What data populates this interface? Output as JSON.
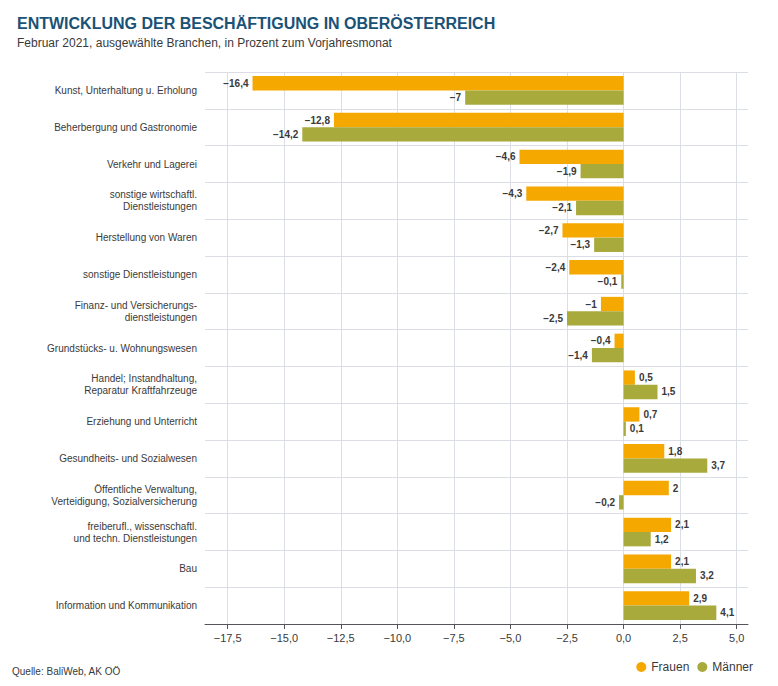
{
  "chart_data": {
    "type": "bar",
    "orientation": "horizontal",
    "title": "ENTWICKLUNG DER BESCHÄFTIGUNG IN OBERÖSTERREICH",
    "subtitle": "Februar 2021, ausgewählte Branchen, in Prozent zum Vorjahresmonat",
    "annotations": [
      "Quelle: BaliWeb, AK OÖ"
    ],
    "categories": [
      "Kunst, Unterhaltung u. Erholung",
      "Beherbergung und Gastronomie",
      "Verkehr und Lagerei",
      "sonstige wirtschaftl.\nDienstleistungen",
      "Herstellung von Waren",
      "sonstige Dienstleistungen",
      "Finanz- und Versicherungs-\ndienstleistungen",
      "Grundstücks- u. Wohnungswesen",
      "Handel; Instandhaltung,\nReparatur Kraftfahrzeuge",
      "Erziehung und Unterricht",
      "Gesundheits- und Sozialwesen",
      "Öffentliche Verwaltung,\nVerteidigung, Sozialversicherung",
      "freiberufl., wissenschaftl.\nund techn. Dienstleistungen",
      "Bau",
      "Information und Kommunikation"
    ],
    "series": [
      {
        "name": "Frauen",
        "color": "#F5A800",
        "values": [
          -16.4,
          -12.8,
          -4.6,
          -4.3,
          -2.7,
          -2.4,
          -1.0,
          -0.4,
          0.5,
          0.7,
          1.8,
          2.0,
          2.1,
          2.1,
          2.9
        ],
        "value_labels": [
          "−16,4",
          "−12,8",
          "−4,6",
          "−4,3",
          "−2,7",
          "−2,4",
          "−1",
          "−0,4",
          "0,5",
          "0,7",
          "1,8",
          "2",
          "2,1",
          "2,1",
          "2,9"
        ]
      },
      {
        "name": "Männer",
        "color": "#A8AA3C",
        "values": [
          -7.0,
          -14.2,
          -1.9,
          -2.1,
          -1.3,
          -0.1,
          -2.5,
          -1.4,
          1.5,
          0.1,
          3.7,
          -0.2,
          1.2,
          3.2,
          4.1
        ],
        "value_labels": [
          "−7",
          "−14,2",
          "−1,9",
          "−2,1",
          "−1,3",
          "−0,1",
          "−2,5",
          "−1,4",
          "1,5",
          "0,1",
          "3,7",
          "−0,2",
          "1,2",
          "3,2",
          "4,1"
        ]
      }
    ],
    "xlim": [
      -18.5,
      5.5
    ],
    "xticks": [
      {
        "value": -17.5,
        "label": "−17,5"
      },
      {
        "value": -15.0,
        "label": "−15,0"
      },
      {
        "value": -12.5,
        "label": "−12,5"
      },
      {
        "value": -10.0,
        "label": "−10,0"
      },
      {
        "value": -7.5,
        "label": "−7,5"
      },
      {
        "value": -5.0,
        "label": "−5,0"
      },
      {
        "value": -2.5,
        "label": "−2,5"
      },
      {
        "value": 0.0,
        "label": "0,0"
      },
      {
        "value": 2.5,
        "label": "2,5"
      },
      {
        "value": 5.0,
        "label": "5,0"
      }
    ],
    "grid": true,
    "legend": "lower right",
    "data_labels": true
  }
}
